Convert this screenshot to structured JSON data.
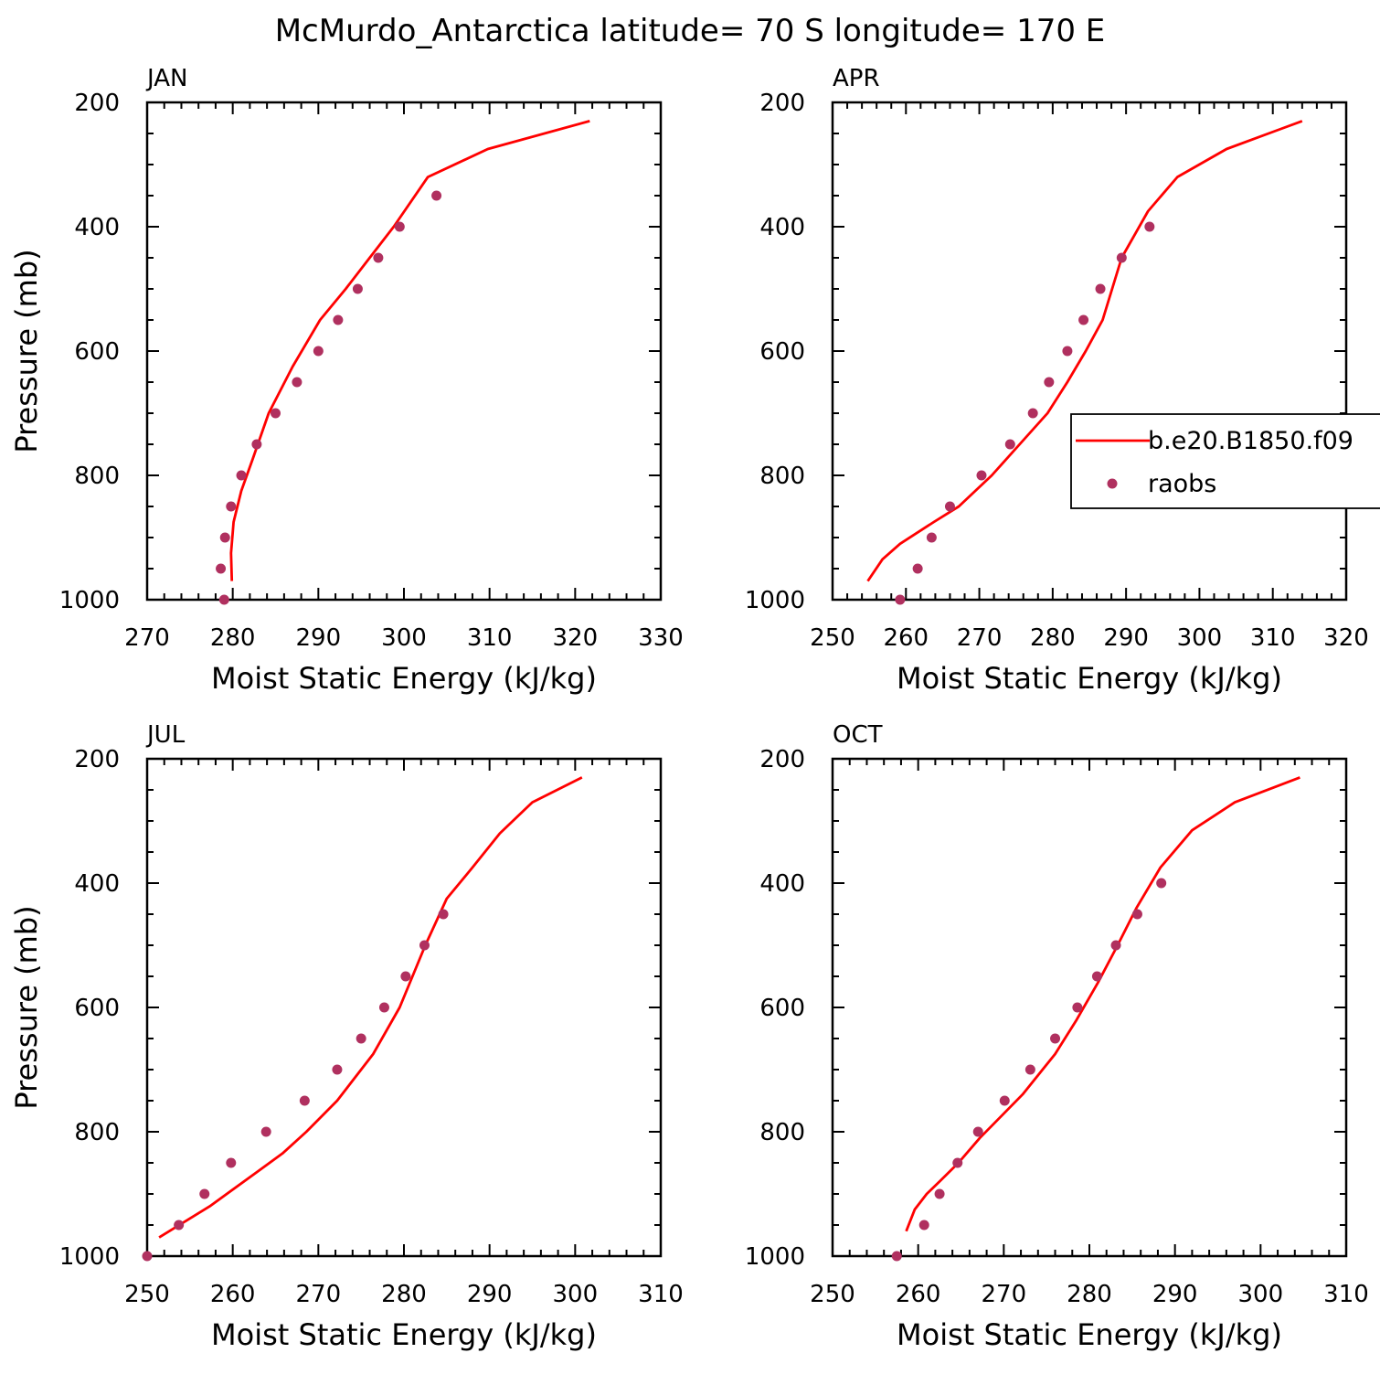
{
  "suptitle": "McMurdo_Antarctica  latitude= 70 S longitude= 170 E",
  "colors": {
    "model": "#ff0000",
    "obs": "#b0305f",
    "axis": "#000000"
  },
  "chart_data": [
    {
      "type": "line",
      "panel_label": "JAN",
      "xlabel": "Moist Static Energy (kJ/kg)",
      "ylabel": "Pressure (mb)",
      "xlim": [
        270,
        330
      ],
      "ylim": [
        1000,
        200
      ],
      "xticks": [
        270,
        280,
        290,
        300,
        310,
        320,
        330
      ],
      "yticks": [
        200,
        400,
        600,
        800,
        1000
      ],
      "series": [
        {
          "name": "b.e20.B1850.f09",
          "kind": "line",
          "x": [
            279.9,
            279.8,
            280.1,
            281.0,
            282.3,
            284.2,
            287.0,
            290.2,
            293.2,
            296.0,
            298.8,
            302.8,
            309.8,
            321.7
          ],
          "y": [
            970,
            925,
            875,
            825,
            775,
            700,
            625,
            550,
            500,
            450,
            400,
            320,
            275,
            230
          ]
        },
        {
          "name": "raobs",
          "kind": "scatter",
          "x": [
            279.0,
            278.6,
            279.1,
            279.8,
            281.0,
            282.8,
            285.0,
            287.5,
            290.0,
            292.3,
            294.6,
            297.0,
            299.5,
            303.8
          ],
          "y": [
            1000,
            950,
            900,
            850,
            800,
            750,
            700,
            650,
            600,
            550,
            500,
            450,
            400,
            350
          ]
        }
      ]
    },
    {
      "type": "line",
      "panel_label": "APR",
      "xlabel": "Moist Static Energy (kJ/kg)",
      "ylabel": "",
      "xlim": [
        250,
        320
      ],
      "ylim": [
        1000,
        200
      ],
      "xticks": [
        250,
        260,
        270,
        280,
        290,
        300,
        310,
        320
      ],
      "yticks": [
        200,
        400,
        600,
        800,
        1000
      ],
      "legend": {
        "entries": [
          "b.e20.B1850.f09",
          "raobs"
        ],
        "location": "right"
      },
      "series": [
        {
          "name": "b.e20.B1850.f09",
          "kind": "line",
          "x": [
            254.8,
            256.8,
            259.2,
            263.8,
            267.2,
            271.7,
            275.5,
            279.3,
            282.0,
            284.5,
            286.8,
            289.4,
            293.0,
            297.0,
            303.7,
            314.0
          ],
          "y": [
            970,
            935,
            910,
            875,
            850,
            800,
            750,
            700,
            650,
            600,
            550,
            450,
            375,
            320,
            275,
            230
          ]
        },
        {
          "name": "raobs",
          "kind": "scatter",
          "x": [
            259.2,
            261.6,
            263.5,
            266.0,
            270.3,
            274.2,
            277.3,
            279.5,
            282.0,
            284.2,
            286.5,
            289.4,
            293.2
          ],
          "y": [
            1000,
            950,
            900,
            850,
            800,
            750,
            700,
            650,
            600,
            550,
            500,
            450,
            400
          ]
        }
      ]
    },
    {
      "type": "line",
      "panel_label": "JUL",
      "xlabel": "Moist Static Energy (kJ/kg)",
      "ylabel": "Pressure (mb)",
      "xlim": [
        250,
        310
      ],
      "ylim": [
        1000,
        200
      ],
      "xticks": [
        250,
        260,
        270,
        280,
        290,
        300,
        310
      ],
      "yticks": [
        200,
        400,
        600,
        800,
        1000
      ],
      "series": [
        {
          "name": "b.e20.B1850.f09",
          "kind": "line",
          "x": [
            251.4,
            257.3,
            262.8,
            265.8,
            268.6,
            272.2,
            276.4,
            279.5,
            282.5,
            285.0,
            288.0,
            291.2,
            295.0,
            300.8
          ],
          "y": [
            970,
            920,
            865,
            835,
            800,
            750,
            675,
            600,
            500,
            425,
            375,
            320,
            270,
            230
          ]
        },
        {
          "name": "raobs",
          "kind": "scatter",
          "x": [
            250.0,
            253.7,
            256.7,
            259.8,
            263.9,
            268.4,
            272.2,
            275.0,
            277.7,
            280.2,
            282.4,
            284.6
          ],
          "y": [
            1000,
            950,
            900,
            850,
            800,
            750,
            700,
            650,
            600,
            550,
            500,
            450
          ]
        }
      ]
    },
    {
      "type": "line",
      "panel_label": "OCT",
      "xlabel": "Moist Static Energy (kJ/kg)",
      "ylabel": "",
      "xlim": [
        250,
        310
      ],
      "ylim": [
        1000,
        200
      ],
      "xticks": [
        250,
        260,
        270,
        280,
        290,
        300,
        310
      ],
      "yticks": [
        200,
        400,
        600,
        800,
        1000
      ],
      "series": [
        {
          "name": "b.e20.B1850.f09",
          "kind": "line",
          "x": [
            258.6,
            259.6,
            261.0,
            262.5,
            264.7,
            267.2,
            272.2,
            276.0,
            278.5,
            281.0,
            283.3,
            285.5,
            288.3,
            292.0,
            297.0,
            304.6
          ],
          "y": [
            960,
            925,
            900,
            880,
            850,
            810,
            740,
            675,
            620,
            560,
            500,
            440,
            375,
            315,
            270,
            230
          ]
        },
        {
          "name": "raobs",
          "kind": "scatter",
          "x": [
            257.5,
            260.7,
            262.5,
            264.6,
            267.0,
            270.1,
            273.1,
            276.0,
            278.6,
            280.9,
            283.1,
            285.6,
            288.4
          ],
          "y": [
            1000,
            950,
            900,
            850,
            800,
            750,
            700,
            650,
            600,
            550,
            500,
            450,
            400
          ]
        }
      ]
    }
  ]
}
